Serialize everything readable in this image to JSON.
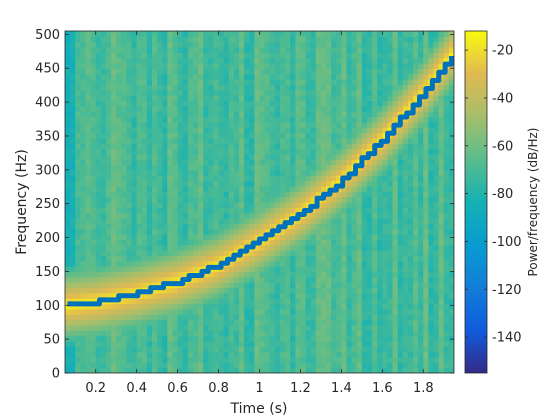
{
  "chart_data": {
    "type": "heatmap",
    "title": "",
    "xlabel": "Time (s)",
    "ylabel": "Frequency (Hz)",
    "colorbar_label": "Power/frequency (dB/Hz)",
    "xlim": [
      0.05,
      1.95
    ],
    "ylim": [
      0,
      505
    ],
    "clim": [
      -155,
      -12
    ],
    "xticks": [
      0.2,
      0.4,
      0.6,
      0.8,
      1,
      1.2,
      1.4,
      1.6,
      1.8
    ],
    "xtick_labels": [
      "0.2",
      "0.4",
      "0.6",
      "0.8",
      "1",
      "1.2",
      "1.4",
      "1.6",
      "1.8"
    ],
    "yticks": [
      0,
      50,
      100,
      150,
      200,
      250,
      300,
      350,
      400,
      450,
      500
    ],
    "ytick_labels": [
      "0",
      "50",
      "100",
      "150",
      "200",
      "250",
      "300",
      "350",
      "400",
      "450",
      "500"
    ],
    "cticks": [
      -140,
      -120,
      -100,
      -80,
      -60,
      -40,
      -20
    ],
    "ctick_labels": [
      "-140",
      "-120",
      "-100",
      "-80",
      "-60",
      "-40",
      "-20"
    ],
    "colormap": "parula",
    "background_level_db": -70,
    "ridge_peak_db": -15,
    "ridge": {
      "t": [
        0.05,
        0.2,
        0.4,
        0.6,
        0.8,
        1.0,
        1.2,
        1.4,
        1.6,
        1.8,
        1.95
      ],
      "f": [
        100,
        105,
        118,
        135,
        160,
        195,
        235,
        285,
        345,
        415,
        475
      ]
    },
    "overlay_color": "#0072BD"
  }
}
